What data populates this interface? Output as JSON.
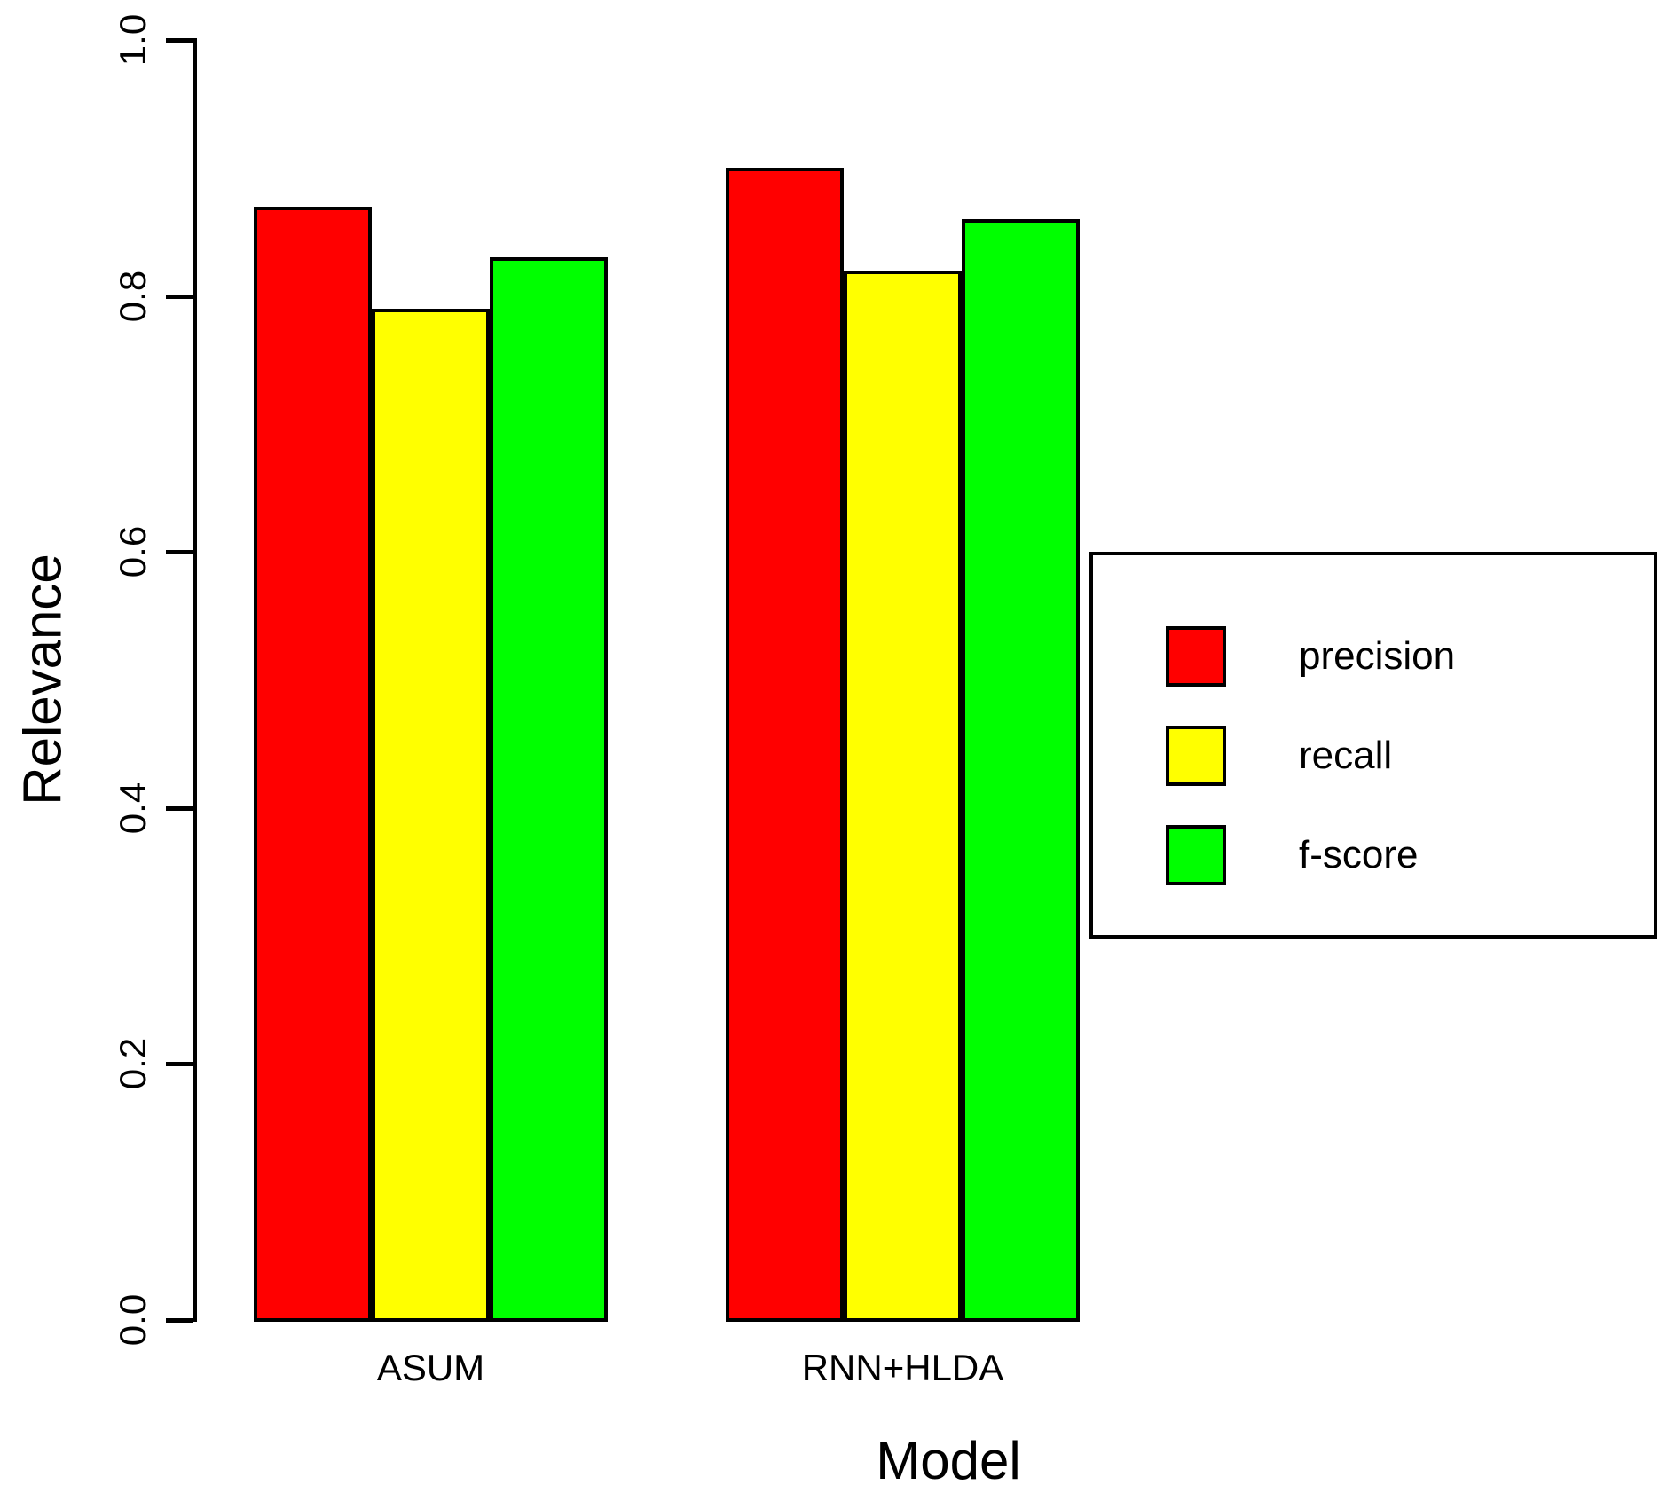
{
  "chart_data": {
    "type": "bar",
    "title": "",
    "xlabel": "Model",
    "ylabel": "Relevance",
    "categories": [
      "ASUM",
      "RNN+HLDA"
    ],
    "series": [
      {
        "name": "precision",
        "color": "#FF0000",
        "values": [
          0.87,
          0.9
        ]
      },
      {
        "name": "recall",
        "color": "#FFFF00",
        "values": [
          0.79,
          0.82
        ]
      },
      {
        "name": "f-score",
        "color": "#00FF00",
        "values": [
          0.83,
          0.86
        ]
      }
    ],
    "ylim": [
      0.0,
      1.0
    ],
    "yticks": [
      0.0,
      0.2,
      0.4,
      0.6,
      0.8,
      1.0
    ],
    "ytick_labels": [
      "0.0",
      "0.2",
      "0.4",
      "0.6",
      "0.8",
      "1.0"
    ],
    "grid": false,
    "legend_position": "right",
    "bar_edge_color": "#000000",
    "background_color": "#FFFFFF"
  }
}
